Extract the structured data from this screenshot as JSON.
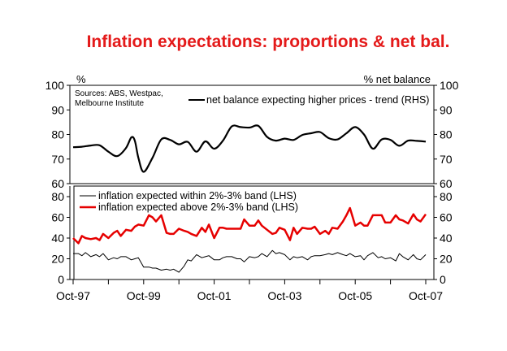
{
  "chart_data": [
    {
      "type": "line",
      "panel": "top",
      "title": "Inflation expectations: proportions & net bal.",
      "left_unit_label": "%",
      "right_unit_label": "% net balance",
      "source_note": [
        "Sources: ABS, Westpac,",
        "Melbourne Institute"
      ],
      "ylim_left": [
        60,
        100
      ],
      "ylim_right": [
        60,
        100
      ],
      "yticks_left": [
        "100",
        "90",
        "80",
        "70",
        "60"
      ],
      "yticks_right": [
        "100",
        "90",
        "80",
        "70",
        "60"
      ],
      "x_range_years": [
        1997.75,
        2007.75
      ],
      "series": [
        {
          "name": "net balance expecting higher prices - trend (RHS)",
          "color": "#000000",
          "x": [
            1997.75,
            1998.0,
            1998.25,
            1998.5,
            1998.75,
            1999.0,
            1999.25,
            1999.4,
            1999.5,
            1999.6,
            1999.75,
            2000.0,
            2000.25,
            2000.5,
            2000.75,
            2001.0,
            2001.25,
            2001.5,
            2001.75,
            2002.0,
            2002.25,
            2002.5,
            2002.75,
            2003.0,
            2003.25,
            2003.5,
            2003.75,
            2004.0,
            2004.25,
            2004.5,
            2004.75,
            2005.0,
            2005.25,
            2005.5,
            2005.75,
            2006.0,
            2006.25,
            2006.5,
            2006.75,
            2007.0,
            2007.25,
            2007.5,
            2007.75
          ],
          "values": [
            74.8,
            75.0,
            75.5,
            75.6,
            73.0,
            71.2,
            74.5,
            78.8,
            77.5,
            70.5,
            64.8,
            70.5,
            78.0,
            77.8,
            76.0,
            77.0,
            73.0,
            77.2,
            74.2,
            77.5,
            83.3,
            83.0,
            82.8,
            83.5,
            79.0,
            77.5,
            78.3,
            77.8,
            79.8,
            80.5,
            81.0,
            78.5,
            78.0,
            80.5,
            83.0,
            80.0,
            74.2,
            78.0,
            77.8,
            75.4,
            77.5,
            77.4,
            77.1
          ]
        }
      ]
    },
    {
      "type": "line",
      "panel": "bottom",
      "ylim_left": [
        0,
        80
      ],
      "ylim_right": [
        0,
        80
      ],
      "yticks_left": [
        "80",
        "60",
        "40",
        "20",
        "0"
      ],
      "yticks_right": [
        "80",
        "60",
        "40",
        "20",
        "0"
      ],
      "xticks": [
        "Oct-97",
        "Oct-99",
        "Oct-01",
        "Oct-03",
        "Oct-05",
        "Oct-07"
      ],
      "x_range_years": [
        1997.75,
        2007.75
      ],
      "series": [
        {
          "name": "inflation expected within 2%-3% band (LHS)",
          "color": "#000000",
          "x": [
            1997.75,
            1997.9,
            1998.0,
            1998.1,
            1998.25,
            1998.4,
            1998.5,
            1998.6,
            1998.75,
            1998.9,
            1999.0,
            1999.1,
            1999.25,
            1999.4,
            1999.5,
            1999.6,
            1999.75,
            1999.9,
            2000.0,
            2000.1,
            2000.25,
            2000.4,
            2000.5,
            2000.6,
            2000.75,
            2000.9,
            2001.0,
            2001.1,
            2001.25,
            2001.4,
            2001.5,
            2001.6,
            2001.75,
            2001.9,
            2002.0,
            2002.1,
            2002.25,
            2002.4,
            2002.5,
            2002.6,
            2002.75,
            2002.9,
            2003.0,
            2003.1,
            2003.25,
            2003.4,
            2003.5,
            2003.6,
            2003.75,
            2003.9,
            2004.0,
            2004.1,
            2004.25,
            2004.4,
            2004.5,
            2004.6,
            2004.75,
            2004.9,
            2005.0,
            2005.1,
            2005.25,
            2005.4,
            2005.5,
            2005.6,
            2005.75,
            2005.9,
            2006.0,
            2006.1,
            2006.25,
            2006.4,
            2006.5,
            2006.6,
            2006.75,
            2006.9,
            2007.0,
            2007.1,
            2007.25,
            2007.4,
            2007.5,
            2007.6,
            2007.75
          ],
          "values": [
            25,
            25,
            23,
            26,
            22,
            24,
            22,
            25,
            19,
            21,
            20,
            22,
            22,
            19,
            20,
            21,
            12,
            12,
            11,
            11,
            9,
            10,
            9,
            10,
            7,
            13,
            19,
            18,
            24,
            21,
            22,
            23,
            19,
            19,
            21,
            22,
            22,
            20,
            20,
            17,
            22,
            21,
            22,
            25,
            22,
            28,
            25,
            26,
            24,
            19,
            22,
            21,
            22,
            19,
            22,
            23,
            23,
            24,
            25,
            24,
            26,
            24,
            23,
            25,
            22,
            23,
            19,
            23,
            26,
            21,
            22,
            20,
            21,
            18,
            25,
            22,
            19,
            24,
            20,
            19,
            24
          ]
        },
        {
          "name": "inflation expected above 2%-3% band (LHS)",
          "color": "#e60000",
          "x": [
            1997.75,
            1997.9,
            1998.0,
            1998.1,
            1998.25,
            1998.4,
            1998.5,
            1998.6,
            1998.75,
            1998.9,
            1999.0,
            1999.1,
            1999.25,
            1999.4,
            1999.5,
            1999.6,
            1999.75,
            1999.9,
            2000.0,
            2000.1,
            2000.25,
            2000.4,
            2000.5,
            2000.6,
            2000.75,
            2000.9,
            2001.0,
            2001.1,
            2001.25,
            2001.4,
            2001.5,
            2001.6,
            2001.75,
            2001.9,
            2002.0,
            2002.1,
            2002.25,
            2002.4,
            2002.5,
            2002.6,
            2002.75,
            2002.9,
            2003.0,
            2003.1,
            2003.25,
            2003.4,
            2003.5,
            2003.6,
            2003.75,
            2003.9,
            2004.0,
            2004.1,
            2004.25,
            2004.4,
            2004.5,
            2004.6,
            2004.75,
            2004.9,
            2005.0,
            2005.1,
            2005.25,
            2005.4,
            2005.5,
            2005.6,
            2005.75,
            2005.9,
            2006.0,
            2006.1,
            2006.25,
            2006.4,
            2006.5,
            2006.6,
            2006.75,
            2006.9,
            2007.0,
            2007.1,
            2007.25,
            2007.4,
            2007.5,
            2007.6,
            2007.75
          ],
          "values": [
            40,
            35,
            42,
            40,
            39,
            40,
            38,
            44,
            40,
            45,
            47,
            42,
            48,
            47,
            51,
            53,
            52,
            62,
            60,
            56,
            62,
            45,
            44,
            44,
            49,
            47,
            46,
            44,
            42,
            50,
            46,
            53,
            40,
            50,
            50,
            49,
            49,
            49,
            49,
            58,
            52,
            52,
            57,
            52,
            48,
            44,
            45,
            50,
            48,
            38,
            50,
            44,
            50,
            49,
            49,
            51,
            44,
            47,
            44,
            50,
            49,
            56,
            62,
            69,
            52,
            55,
            52,
            52,
            62,
            62,
            62,
            55,
            55,
            62,
            58,
            57,
            54,
            63,
            58,
            56,
            63
          ]
        }
      ]
    }
  ]
}
